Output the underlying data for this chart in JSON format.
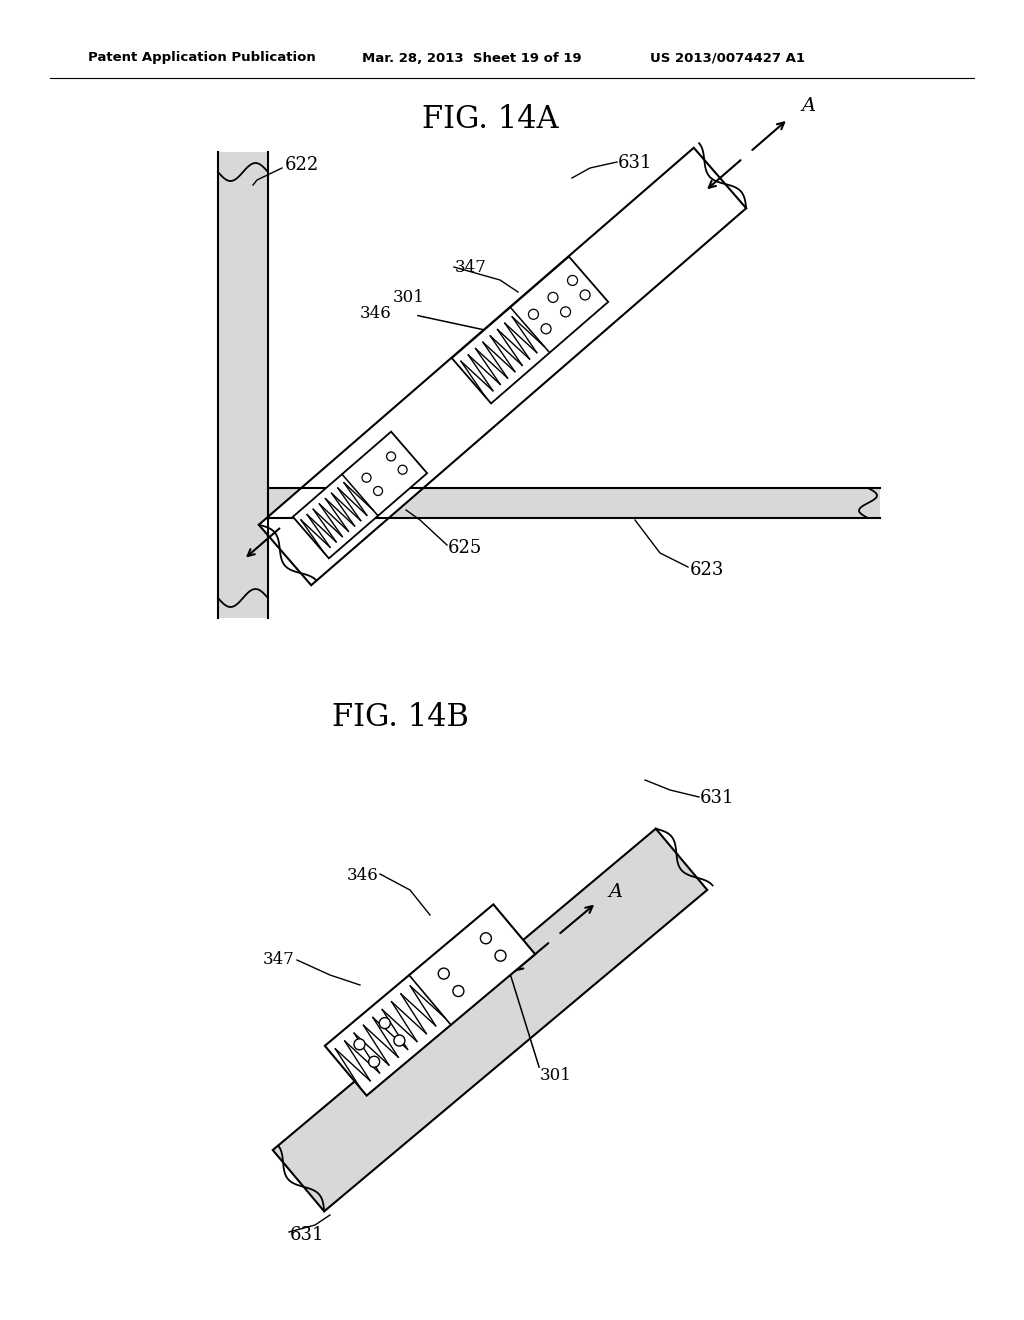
{
  "bg_color": "#ffffff",
  "header_text": "Patent Application Publication",
  "header_date": "Mar. 28, 2013  Sheet 19 of 19",
  "header_patent": "US 2013/0074427 A1",
  "fig14a_title": "FIG. 14A",
  "fig14b_title": "FIG. 14B",
  "line_color": "#000000",
  "gray_fill": "#d8d8d8",
  "white_fill": "#ffffff"
}
